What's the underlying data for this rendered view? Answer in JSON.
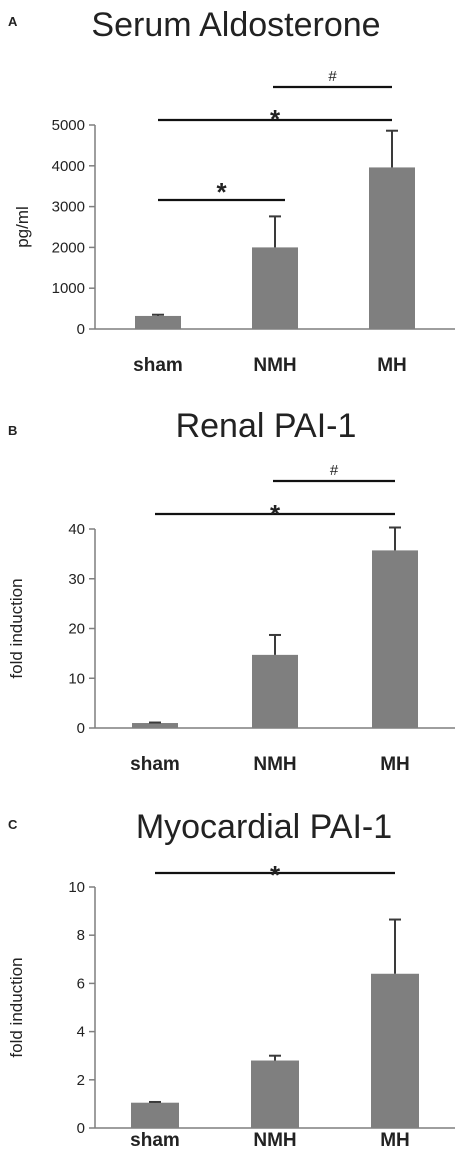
{
  "chart_data": [
    {
      "panel": "A",
      "type": "bar",
      "title": "Serum Aldosterone",
      "ylabel": "pg/ml",
      "xlabel": "",
      "categories": [
        "sham",
        "NMH",
        "MH"
      ],
      "values": [
        320,
        2000,
        3960
      ],
      "errors": [
        30,
        760,
        900
      ],
      "ylim": [
        0,
        5000
      ],
      "yticks": [
        0,
        1000,
        2000,
        3000,
        4000,
        5000
      ],
      "significance": [
        {
          "from": "sham",
          "to": "NMH",
          "label": "*"
        },
        {
          "from": "sham",
          "to": "MH",
          "label": "*"
        },
        {
          "from": "NMH",
          "to": "MH",
          "label": "#"
        }
      ]
    },
    {
      "panel": "B",
      "type": "bar",
      "title": "Renal PAI-1",
      "ylabel": "fold induction",
      "xlabel": "",
      "categories": [
        "sham",
        "NMH",
        "MH"
      ],
      "values": [
        1,
        14.7,
        35.7
      ],
      "errors": [
        0.1,
        4,
        4.6
      ],
      "ylim": [
        0,
        40
      ],
      "yticks": [
        0,
        10,
        20,
        30,
        40
      ],
      "significance": [
        {
          "from": "sham",
          "to": "MH",
          "label": "*"
        },
        {
          "from": "NMH",
          "to": "MH",
          "label": "#"
        }
      ]
    },
    {
      "panel": "C",
      "type": "bar",
      "title": "Myocardial PAI-1",
      "ylabel": "fold induction",
      "xlabel": "",
      "categories": [
        "sham",
        "NMH",
        "MH"
      ],
      "values": [
        1.05,
        2.8,
        6.4
      ],
      "errors": [
        0.03,
        0.2,
        2.25
      ],
      "ylim": [
        0,
        10
      ],
      "yticks": [
        0,
        2,
        4,
        6,
        8,
        10
      ],
      "significance": [
        {
          "from": "sham",
          "to": "MH",
          "label": "*"
        }
      ]
    }
  ]
}
